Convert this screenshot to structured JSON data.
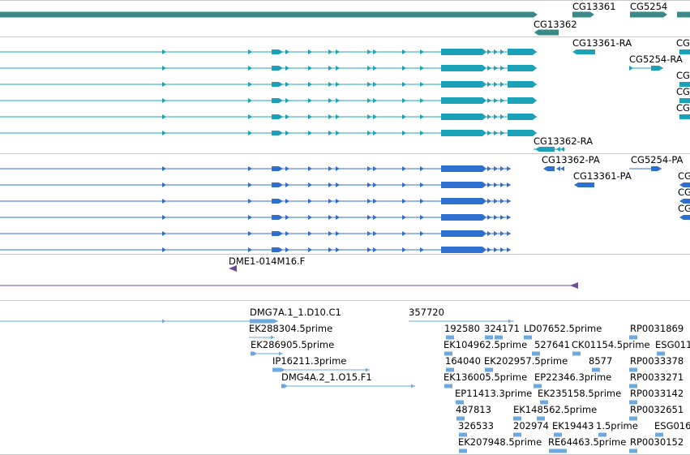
{
  "browser": {
    "colors": {
      "gene": "#3a8a8a",
      "transcript": "#1aa3b8",
      "protein": "#2f6fd0",
      "clone": "#6a4c9c",
      "est": "#6fa8dc",
      "divider": "#c8c8c8"
    },
    "genes": [
      {
        "label": "CG13362"
      },
      {
        "label": "CG13361"
      },
      {
        "label": "CG5254"
      }
    ],
    "transcripts": [
      {
        "label": "CG13361-RA"
      },
      {
        "label": "CG5254-RA"
      },
      {
        "label": "CG13362-RA"
      },
      {
        "label": "CG"
      },
      {
        "label": "CG"
      },
      {
        "label": "CG"
      },
      {
        "label": "CG"
      }
    ],
    "proteins": [
      {
        "label": "CG13362-PA"
      },
      {
        "label": "CG5254-PA"
      },
      {
        "label": "CG13361-PA"
      },
      {
        "label": "CG"
      },
      {
        "label": "CG"
      },
      {
        "label": "CG"
      }
    ],
    "clones": [
      {
        "label": "DME1-014M16.F"
      }
    ],
    "ests": [
      {
        "label": "DMG7A.1_1.D10.C1"
      },
      {
        "label": "357720"
      },
      {
        "label": "EK288304.5prime"
      },
      {
        "label": "EK286905.5prime"
      },
      {
        "label": "IP16211.3prime"
      },
      {
        "label": "DMG4A.2_1.O15.F1"
      },
      {
        "label": "192580"
      },
      {
        "label": "324171"
      },
      {
        "label": "LD07652.5prime"
      },
      {
        "label": "RP0031869"
      },
      {
        "label": "EK104962.5prime"
      },
      {
        "label": "527641"
      },
      {
        "label": "CK01154.5prime"
      },
      {
        "label": "ESG011"
      },
      {
        "label": "164040"
      },
      {
        "label": "EK202957.5prime"
      },
      {
        "label": "8577"
      },
      {
        "label": "RP0033378"
      },
      {
        "label": "EK136005.5prime"
      },
      {
        "label": "EP22346.3prime"
      },
      {
        "label": "RP0033271"
      },
      {
        "label": "EP11413.3prime"
      },
      {
        "label": "EK235158.5prime"
      },
      {
        "label": "RP0033142"
      },
      {
        "label": "487813"
      },
      {
        "label": "EK148562.5prime"
      },
      {
        "label": "RP0032651"
      },
      {
        "label": "326533"
      },
      {
        "label": "202974"
      },
      {
        "label": "EK19443"
      },
      {
        "label": "1.5prime"
      },
      {
        "label": "ESG016"
      },
      {
        "label": "EK207948.5prime"
      },
      {
        "label": "RE64463.5prime"
      },
      {
        "label": "RP0030152"
      }
    ]
  }
}
